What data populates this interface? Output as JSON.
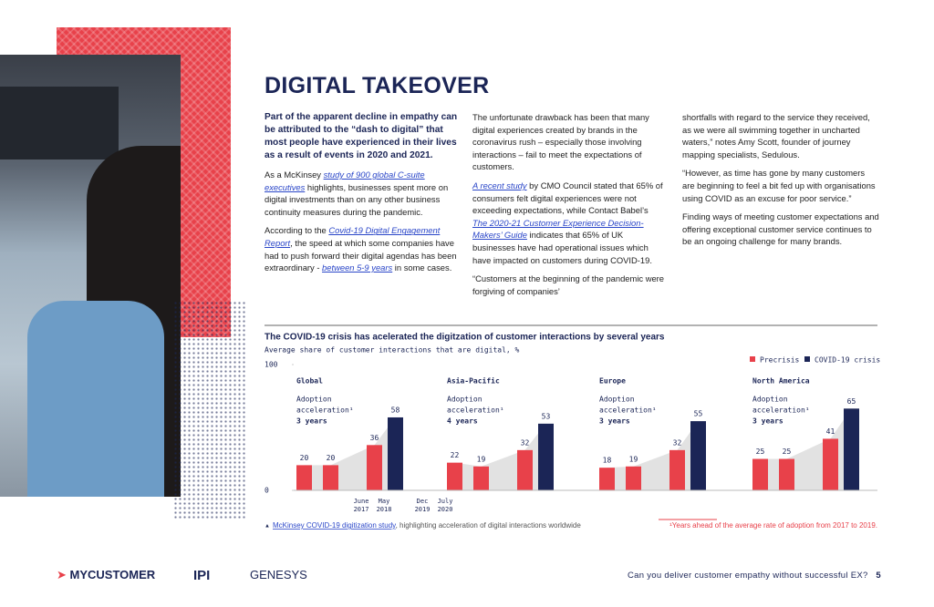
{
  "header": {
    "title": "DIGITAL TAKEOVER"
  },
  "columns": [
    {
      "lead": "Part of the apparent decline in empathy can be attributed to the “dash to digital” that most people have experienced in their lives as a result of events in 2020 and 2021.",
      "paragraphs": [
        [
          "As a McKinsey ",
          {
            "link": "study of 900 global C-suite executives"
          },
          " highlights, businesses spent more on digital investments than on any other business continuity measures during the pandemic."
        ],
        [
          "According to the ",
          {
            "link": "Covid-19 Digital Engagement Report"
          },
          ", the speed at which some companies have had to push forward their digital agendas has been extraordinary - ",
          {
            "link": "between 5-9 years"
          },
          " in some cases."
        ]
      ]
    },
    {
      "paragraphs": [
        [
          "The unfortunate drawback has been that many digital experiences created by brands in the coronavirus rush – especially those involving interactions – fail to meet the expectations of customers."
        ],
        [
          {
            "link": "A recent study"
          },
          " by CMO Council stated that 65% of consumers felt digital experiences were not exceeding expectations, while Contact Babel’s ",
          {
            "link": "The 2020-21 Customer Experience Decision-Makers’ Guide"
          },
          " indicates that 65% of UK businesses have had operational issues which have impacted on customers during COVID-19."
        ],
        [
          "“Customers at the beginning of the pandemic were forgiving of companies’"
        ]
      ]
    },
    {
      "paragraphs": [
        [
          "shortfalls with regard to the service they received, as we were all swimming together in uncharted waters,” notes Amy Scott, founder of journey mapping specialists, Sedulous."
        ],
        [
          "“However, as time has gone by many customers are beginning to feel a bit fed up with organisations using COVID as an excuse for poor service.”"
        ],
        [
          "Finding ways of meeting customer expectations and offering exceptional customer service continues to be an ongoing challenge for many brands."
        ]
      ]
    }
  ],
  "chart_data": {
    "type": "bar",
    "title": "The COVID-19 crisis has acelerated the digitzation of customer interactions by several years",
    "y_label": "Average share of customer interactions that are digital, %",
    "ylim": [
      0,
      100
    ],
    "yticks": [
      0,
      100
    ],
    "series": [
      {
        "name": "Precrisis",
        "color": "#e8414a"
      },
      {
        "name": "COVID-19 crisis",
        "color": "#1b2556"
      }
    ],
    "time_labels": [
      [
        "June",
        "2017"
      ],
      [
        "May",
        "2018"
      ],
      [
        "Dec",
        "2019"
      ],
      [
        "July",
        "2020"
      ]
    ],
    "groups": [
      {
        "label": "Global",
        "annotation": [
          "Adoption",
          "acceleration¹",
          "3 years"
        ],
        "values": [
          20,
          20,
          36,
          58
        ]
      },
      {
        "label": "Asia-Pacific",
        "annotation": [
          "Adoption",
          "acceleration¹",
          "4 years"
        ],
        "values": [
          22,
          19,
          32,
          53
        ]
      },
      {
        "label": "Europe",
        "annotation": [
          "Adoption",
          "acceleration¹",
          "3 years"
        ],
        "values": [
          18,
          19,
          32,
          55
        ]
      },
      {
        "label": "North America",
        "annotation": [
          "Adoption",
          "acceleration¹",
          "3 years"
        ],
        "values": [
          25,
          25,
          41,
          65
        ]
      }
    ],
    "source": {
      "link": "McKinsey COVID-19 digitization study",
      "text": ", highlighting acceleration of digital interactions worldwide"
    },
    "footnote": "¹Years ahead of the average rate of adoption from 2017 to 2019."
  },
  "footer": {
    "logos": [
      "MYCUSTOMER",
      "IPI",
      "GENESYS"
    ],
    "text": "Can you deliver customer empathy without successful EX?",
    "page": "5"
  }
}
